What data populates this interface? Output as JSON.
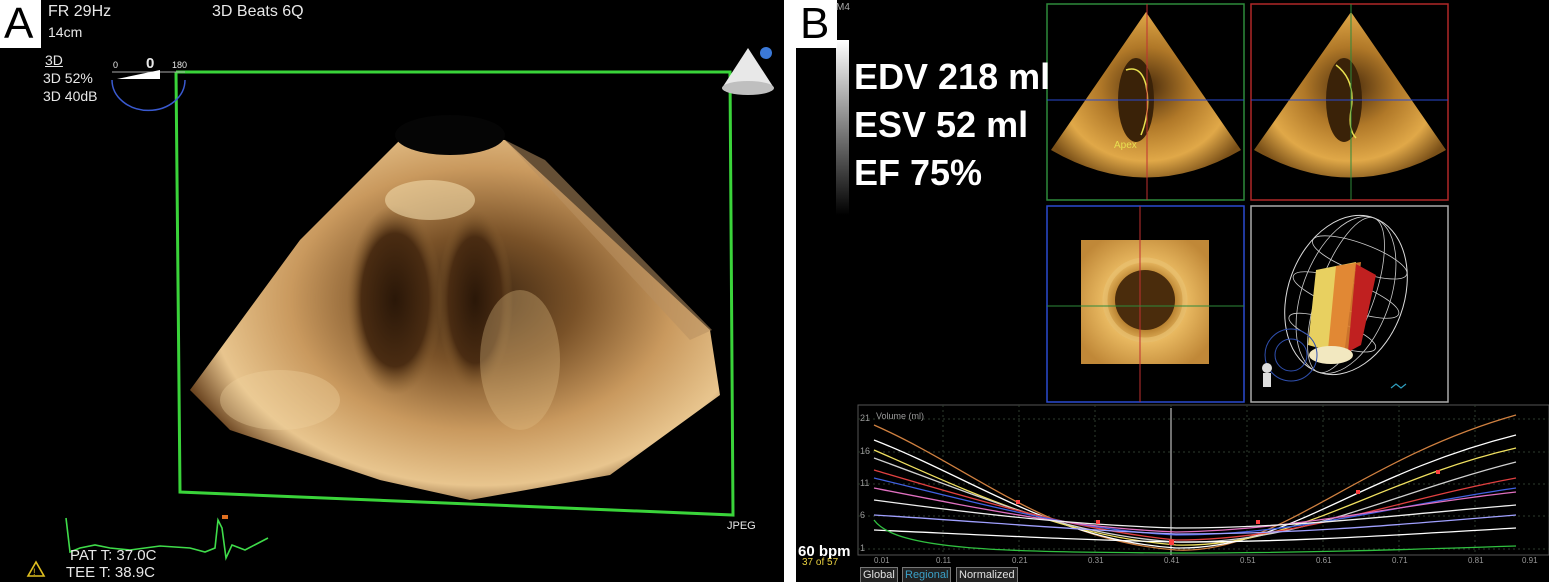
{
  "panel_a": {
    "letter": "A",
    "header": {
      "frame_rate": "FR 29Hz",
      "mode": "3D Beats 6Q",
      "depth": "14cm"
    },
    "settings": {
      "mode": "3D",
      "gain": "3D 52%",
      "compress": "3D 40dB"
    },
    "angle_scale": {
      "min": "0",
      "current": "0",
      "max": "180"
    },
    "format": "JPEG",
    "temps": {
      "patient": "PAT T: 37.0C",
      "probe": "TEE T: 38.9C"
    }
  },
  "panel_b": {
    "letter": "B",
    "corner_label": "M4",
    "measurements": {
      "edv": "EDV 218 ml",
      "esv": "ESV 52 ml",
      "ef": "EF 75%"
    },
    "apex_label": "Apex",
    "heart_rate": "60 bpm",
    "frame_counter": "37 of 57",
    "buttons": {
      "global": "Global",
      "regional": "Regional",
      "normalized": "Normalized"
    },
    "plot_title": "Volume (ml)",
    "y_ticks": [
      "21",
      "16",
      "11",
      "6",
      "1"
    ],
    "x_ticks": [
      "0.01",
      "0.11",
      "0.21",
      "0.31",
      "0.41",
      "0.51",
      "0.61",
      "0.71",
      "0.81",
      "0.91"
    ]
  }
}
